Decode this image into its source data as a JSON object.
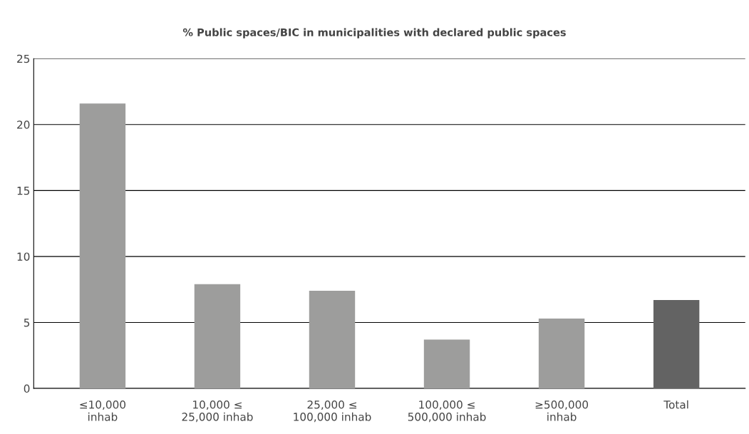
{
  "chart_data": {
    "type": "bar",
    "title": "% Public spaces/BIC in municipalities with declared public spaces",
    "categories": [
      "≤10,000\ninhab",
      "10,000 ≤\n25,000 inhab",
      "25,000 ≤\n100,000 inhab",
      "100,000 ≤\n500,000 inhab",
      "≥500,000\ninhab",
      "Total"
    ],
    "values": [
      21.6,
      7.9,
      7.4,
      3.7,
      5.3,
      6.7
    ],
    "colors": [
      "#9d9d9c",
      "#9d9d9c",
      "#9d9d9c",
      "#9d9d9c",
      "#9d9d9c",
      "#636363"
    ],
    "ylim": [
      0,
      25
    ],
    "yticks": [
      0,
      5,
      10,
      15,
      20,
      25
    ],
    "grid": "y",
    "legend": false
  }
}
